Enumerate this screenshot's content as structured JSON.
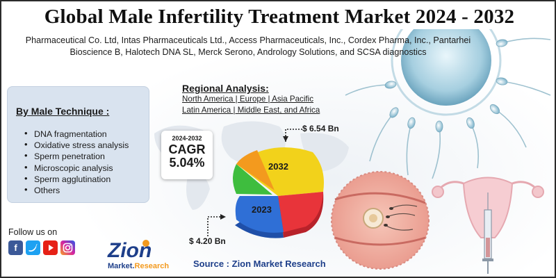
{
  "title": "Global Male Infertility Treatment Market 2024 - 2032",
  "companies": "Pharmaceutical Co. Ltd, Intas Pharmaceuticals Ltd., Access Pharmaceuticals, Inc., Cordex Pharma, Inc., Pantarhei Bioscience B, Halotech DNA SL, Merck Serono, Andrology Solutions, and SCSA diagnostics",
  "technique": {
    "heading": "By Male Technique :",
    "items": [
      "DNA fragmentation",
      "Oxidative stress analysis",
      "Sperm penetration",
      "Microscopic analysis",
      "Sperm agglutination",
      "Others"
    ]
  },
  "regional": {
    "title": "Regional Analysis:",
    "line1": "North America | Europe | Asia Pacific",
    "line2": "Latin America | Middle East, and Africa"
  },
  "cagr": {
    "years": "2024-2032",
    "label": "CAGR",
    "value": "5.04%"
  },
  "pie": {
    "label_2032": "2032",
    "label_2023": "2023",
    "colors": [
      "#f2d21b",
      "#e8343a",
      "#2f6fd6",
      "#3ebd3e",
      "#f39a1e"
    ]
  },
  "values": {
    "top": "$ 6.54 Bn",
    "bottom": "$ 4.20 Bn"
  },
  "follow": {
    "label": "Follow us on",
    "icons": [
      "facebook-icon",
      "twitter-icon",
      "youtube-icon",
      "instagram-icon"
    ]
  },
  "logo": {
    "name": "Zion",
    "sub": "Market.Research"
  },
  "source": "Source : Zion Market Research"
}
